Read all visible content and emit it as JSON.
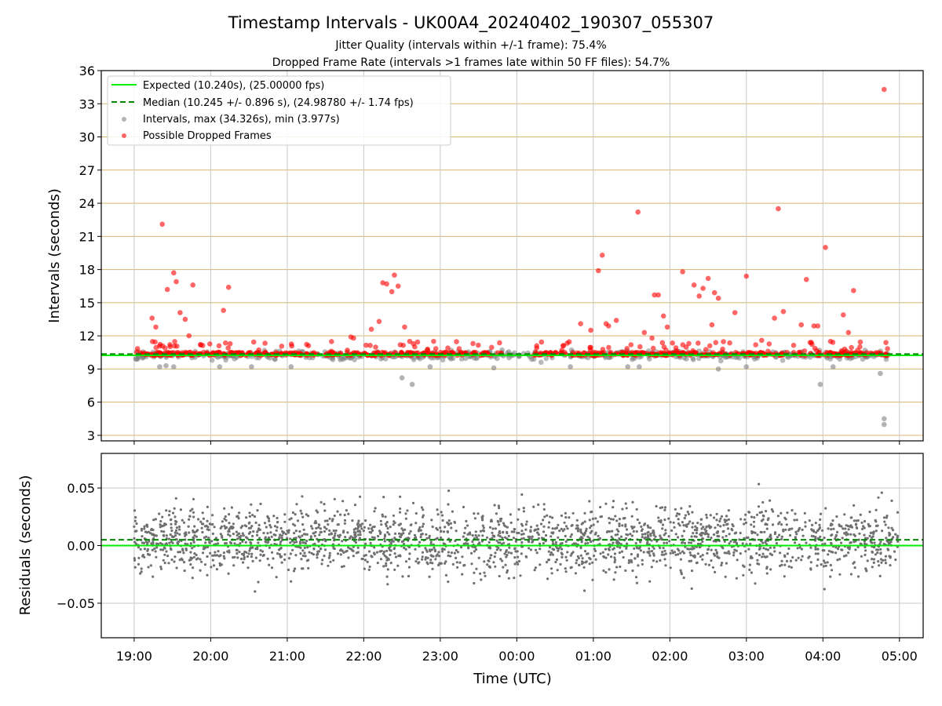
{
  "chart_data": [
    {
      "type": "scatter",
      "title": "Timestamp Intervals - UK00A4_20240402_190307_055307",
      "subtitle_lines": [
        "Jitter Quality (intervals within +/-1 frame): 75.4%",
        "Dropped Frame Rate (intervals >1 frames late within 50 FF files): 54.7%"
      ],
      "ylabel": "Intervals (seconds)",
      "ylim": [
        2.5,
        36
      ],
      "yticks": [
        3,
        6,
        9,
        12,
        15,
        18,
        21,
        24,
        27,
        30,
        33,
        36
      ],
      "ytick_labels": [
        "3",
        "6",
        "9",
        "12",
        "15",
        "18",
        "21",
        "24",
        "27",
        "30",
        "33",
        "36"
      ],
      "x_range_hours": [
        18.57,
        29.31
      ],
      "grid": "on (x grey, y tan)",
      "legend_placement": "top-left",
      "legend": [
        "Expected (10.240s), (25.00000 fps)",
        "Median (10.245 +/- 0.896 s), (24.98780 +/- 1.74 fps)",
        "Intervals, max (34.326s), min (3.977s)",
        "Possible Dropped Frames"
      ],
      "expected": 10.24,
      "median": 10.245,
      "colors": {
        "expected": "#00ee00",
        "median": "#008800",
        "intervals": "#808080",
        "dropped": "#ff0000",
        "ygrid": "#d8b470",
        "xgrid": "#c8c8c8"
      },
      "series": [
        {
          "name": "Possible Dropped Frames",
          "x": [
            "19:14",
            "19:17",
            "19:22",
            "19:26",
            "19:28",
            "19:31",
            "19:33",
            "19:36",
            "19:40",
            "19:43",
            "19:46",
            "19:52",
            "20:10",
            "20:14",
            "21:50",
            "21:52",
            "22:06",
            "22:12",
            "22:15",
            "22:18",
            "22:22",
            "22:24",
            "22:27",
            "22:32",
            "22:36",
            "22:40",
            "00:50",
            "00:58",
            "01:04",
            "01:07",
            "01:10",
            "01:12",
            "01:18",
            "01:35",
            "01:40",
            "01:46",
            "01:48",
            "01:51",
            "01:55",
            "01:58",
            "02:10",
            "02:19",
            "02:23",
            "02:26",
            "02:30",
            "02:33",
            "02:35",
            "02:38",
            "02:51",
            "03:00",
            "03:12",
            "03:22",
            "03:25",
            "03:29",
            "03:43",
            "03:47",
            "03:50",
            "03:53",
            "03:56",
            "04:02",
            "04:06",
            "04:16",
            "04:20",
            "04:24",
            "04:29",
            "04:48"
          ],
          "y": [
            13.6,
            12.8,
            22.1,
            16.2,
            11.2,
            17.7,
            16.9,
            14.1,
            13.5,
            12.0,
            16.6,
            11.2,
            14.3,
            16.4,
            11.9,
            11.8,
            12.6,
            13.3,
            16.8,
            16.7,
            16.0,
            17.5,
            16.5,
            12.8,
            11.5,
            11.0,
            13.1,
            12.5,
            17.9,
            19.3,
            13.1,
            12.9,
            13.4,
            23.2,
            12.3,
            11.8,
            15.7,
            15.7,
            13.8,
            12.8,
            17.8,
            16.6,
            15.6,
            16.3,
            17.2,
            13.0,
            15.9,
            15.4,
            14.1,
            17.4,
            11.6,
            13.6,
            23.5,
            14.2,
            13.0,
            17.1,
            11.4,
            12.9,
            12.9,
            20.0,
            11.5,
            13.9,
            12.3,
            16.1,
            11.0,
            34.3
          ]
        },
        {
          "name": "Intervals, max (34.326s), min (3.977s)",
          "x": [
            "19:20",
            "19:25",
            "19:31",
            "20:07",
            "20:32",
            "21:03",
            "22:30",
            "22:38",
            "22:52",
            "23:42",
            "00:42",
            "01:27",
            "01:36",
            "02:38",
            "03:00",
            "03:58",
            "04:08",
            "04:45",
            "04:48",
            "04:48"
          ],
          "y": [
            9.2,
            9.3,
            9.2,
            9.2,
            9.2,
            9.2,
            8.2,
            7.6,
            9.2,
            9.1,
            9.2,
            9.2,
            9.2,
            9.0,
            9.2,
            7.6,
            9.2,
            8.6,
            4.5,
            3.977
          ]
        }
      ]
    },
    {
      "type": "scatter",
      "ylabel": "Residuals (seconds)",
      "xlabel": "Time (UTC)",
      "ylim": [
        -0.08,
        0.08
      ],
      "yticks": [
        -0.05,
        0.0,
        0.05
      ],
      "ytick_labels": [
        "−0.05",
        "0.00",
        "0.05"
      ],
      "xticks": [
        "19:00",
        "20:00",
        "21:00",
        "22:00",
        "23:00",
        "00:00",
        "01:00",
        "02:00",
        "03:00",
        "04:00",
        "05:00"
      ],
      "xtick_hours": [
        19,
        20,
        21,
        22,
        23,
        24,
        25,
        26,
        27,
        28,
        29
      ],
      "x_range_hours": [
        18.57,
        29.31
      ],
      "expected_residual": 0.0,
      "median_residual": 0.005,
      "residual_spread_sd": 0.024,
      "colors": {
        "residuals": "#707070",
        "expected": "#00ee00",
        "median": "#008800"
      }
    }
  ]
}
